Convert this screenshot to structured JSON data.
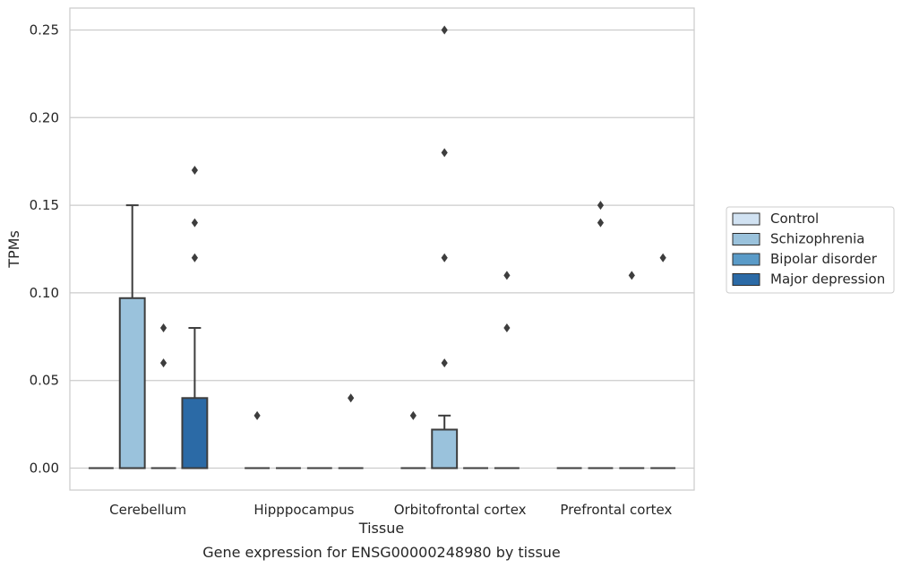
{
  "chart_data": {
    "type": "box",
    "title": "Gene expression for ENSG00000248980 by tissue",
    "xlabel": "Tissue",
    "ylabel": "TPMs",
    "ylim": [
      -0.0125,
      0.2625
    ],
    "yticks": [
      "0.00",
      "0.05",
      "0.10",
      "0.15",
      "0.20",
      "0.25"
    ],
    "grid": true,
    "legend_position": "right",
    "categories": [
      "Cerebellum",
      "Hipppocampus",
      "Orbitofrontal cortex",
      "Prefrontal cortex"
    ],
    "series": [
      {
        "name": "Control",
        "color": "#d1e2f2",
        "boxes": [
          {
            "q1": 0,
            "median": 0,
            "q3": 0,
            "whisker_low": 0,
            "whisker_high": 0,
            "outliers": []
          },
          {
            "q1": 0,
            "median": 0,
            "q3": 0,
            "whisker_low": 0,
            "whisker_high": 0,
            "outliers": [
              0.03
            ]
          },
          {
            "q1": 0,
            "median": 0,
            "q3": 0,
            "whisker_low": 0,
            "whisker_high": 0,
            "outliers": [
              0.03
            ]
          },
          {
            "q1": 0,
            "median": 0,
            "q3": 0,
            "whisker_low": 0,
            "whisker_high": 0,
            "outliers": []
          }
        ]
      },
      {
        "name": "Schizophrenia",
        "color": "#9ac2dc",
        "boxes": [
          {
            "q1": 0,
            "median": 0,
            "q3": 0.097,
            "whisker_low": 0,
            "whisker_high": 0.15,
            "outliers": []
          },
          {
            "q1": 0,
            "median": 0,
            "q3": 0,
            "whisker_low": 0,
            "whisker_high": 0,
            "outliers": []
          },
          {
            "q1": 0,
            "median": 0,
            "q3": 0.022,
            "whisker_low": 0,
            "whisker_high": 0.03,
            "outliers": [
              0.06,
              0.12,
              0.18,
              0.25
            ]
          },
          {
            "q1": 0,
            "median": 0,
            "q3": 0,
            "whisker_low": 0,
            "whisker_high": 0,
            "outliers": [
              0.14,
              0.15
            ]
          }
        ]
      },
      {
        "name": "Bipolar disorder",
        "color": "#5a9bc8",
        "boxes": [
          {
            "q1": 0,
            "median": 0,
            "q3": 0,
            "whisker_low": 0,
            "whisker_high": 0,
            "outliers": [
              0.06,
              0.08
            ]
          },
          {
            "q1": 0,
            "median": 0,
            "q3": 0,
            "whisker_low": 0,
            "whisker_high": 0,
            "outliers": []
          },
          {
            "q1": 0,
            "median": 0,
            "q3": 0,
            "whisker_low": 0,
            "whisker_high": 0,
            "outliers": []
          },
          {
            "q1": 0,
            "median": 0,
            "q3": 0,
            "whisker_low": 0,
            "whisker_high": 0,
            "outliers": [
              0.11
            ]
          }
        ]
      },
      {
        "name": "Major depression",
        "color": "#2b6aa6",
        "boxes": [
          {
            "q1": 0,
            "median": 0,
            "q3": 0.04,
            "whisker_low": 0,
            "whisker_high": 0.08,
            "outliers": [
              0.12,
              0.14,
              0.17
            ]
          },
          {
            "q1": 0,
            "median": 0,
            "q3": 0,
            "whisker_low": 0,
            "whisker_high": 0,
            "outliers": [
              0.04
            ]
          },
          {
            "q1": 0,
            "median": 0,
            "q3": 0,
            "whisker_low": 0,
            "whisker_high": 0,
            "outliers": [
              0.08,
              0.11
            ]
          },
          {
            "q1": 0,
            "median": 0,
            "q3": 0,
            "whisker_low": 0,
            "whisker_high": 0,
            "outliers": [
              0.12
            ]
          }
        ]
      }
    ]
  }
}
